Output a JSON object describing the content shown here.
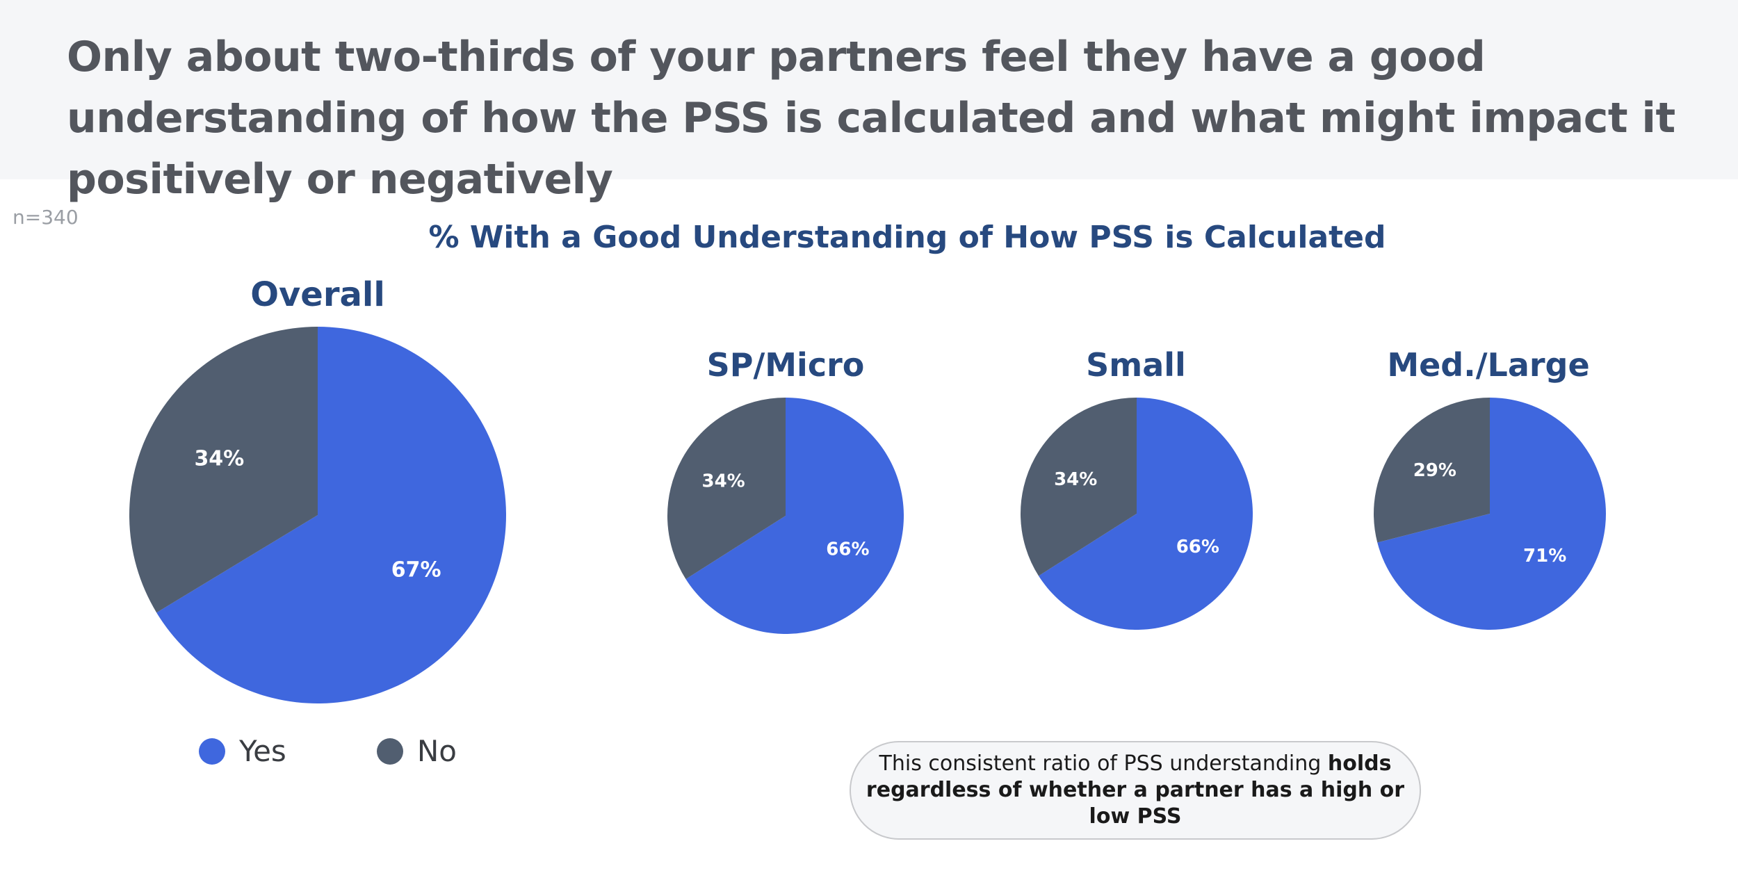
{
  "headline": "Only about two-thirds of your partners feel they have a good understanding of how the PSS is calculated and what might impact it positively or negatively",
  "sample_size": "n=340",
  "colors": {
    "yes": "#3f67de",
    "no": "#515e70"
  },
  "chart_data": {
    "type": "pie",
    "title": "% With a Good Understanding of How PSS is Calculated",
    "legend": [
      "Yes",
      "No"
    ],
    "pies": [
      {
        "name": "Overall",
        "yes": 67,
        "no": 34,
        "yes_label": "67%",
        "no_label": "34%"
      },
      {
        "name": "SP/Micro",
        "yes": 66,
        "no": 34,
        "yes_label": "66%",
        "no_label": "34%"
      },
      {
        "name": "Small",
        "yes": 66,
        "no": 34,
        "yes_label": "66%",
        "no_label": "34%"
      },
      {
        "name": "Med./Large",
        "yes": 71,
        "no": 29,
        "yes_label": "71%",
        "no_label": "29%"
      }
    ]
  },
  "callout": {
    "text_plain": "This consistent ratio of PSS understanding ",
    "text_bold": "holds regardless of whether a partner has a high or low PSS"
  }
}
